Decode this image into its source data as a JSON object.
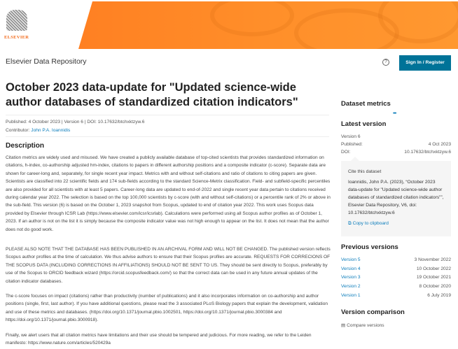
{
  "header": {
    "logo_text": "ELSEVIER",
    "brand_color": "#ff7a1f",
    "site_title": "Elsevier Data Repository",
    "help_icon": "help-circle-icon",
    "signin_label": "Sign In / Register",
    "signin_color": "#007398"
  },
  "dataset": {
    "title": "October 2023 data-update for \"Updated science-wide author databases of standardized citation indicators\"",
    "published_line": "Published: 4 October 2023 | Version 6 | DOI: 10.17632/btchxktzyw.6",
    "contributor_label": "Contributor:",
    "contributor_name": "John P.A. Ioannidis"
  },
  "description": {
    "heading": "Description",
    "paragraphs": [
      "Citation metrics are widely used and misused. We have created a publicly available database of top-cited scientists that provides standardized information on citations, h-index, co-authorship adjusted hm-index, citations to papers in different authorship positions and a composite indicator (c-score). Separate data are shown for career-long and, separately, for single recent year impact. Metrics with and without self-citations and ratio of citations to citing papers are given. Scientists are classified into 22 scientific fields and 174 sub-fields according to the standard Science-Metrix classification. Field- and subfield-specific percentiles are also provided for all scientists with at least 5 papers. Career-long data are updated to end-of-2022 and single recent year data pertain to citations received during calendar year 2022. The selection is based on the top 100,000 scientists by c-score (with and without self-citations) or a percentile rank of 2% or above in the sub-field. This version (6) is based on the October 1, 2023 snapshot from Scopus, updated to end of citation year 2022. This work uses Scopus data provided by Elsevier through ICSR Lab (https://www.elsevier.com/icsr/icsrlab). Calculations were performed using all Scopus author profiles as of October 1, 2023. If an author is not on the list it is simply because the composite indicator value was not high enough to appear on the list. It does not mean that the author does not do good work.",
      "PLEASE ALSO NOTE THAT THE DATABASE HAS BEEN PUBLISHED IN AN ARCHIVAL FORM AND WILL NOT BE CHANGED. The published version reflects Scopus author profiles at the time of calculation. We thus advise authors to ensure that their Scopus profiles are accurate. REQUESTS FOR CORRECIONS OF THE SCOPUS DATA (INCLUDING CORRECTIONS IN AFFILIATIONS) SHOULD NOT BE SENT TO US. They should be sent directly to Scopus, preferably by use of the Scopus to ORCID feedback wizard (https://orcid.scopusfeedback.com/) so that the correct data can be used in any future annual updates of the citation indicator databases.",
      "The c-score focuses on impact (citations) rather than productivity (number of publications) and it also incorporates information on co-authorship and author positions (single, first, last author). If you have additional questions, please read the 3 associated PLoS Biology papers that explain the development, validation and use of these metrics and databases. (https://doi.org/10.1371/journal.pbio.1002501, https://doi.org/10.1371/journal.pbio.3000384 and https://doi.org/10.1371/journal.pbio.3000918).",
      "Finally, we alert users that all citation metrics have limitations and their use should be tempered and judicious. For more reading, we refer to the Leiden manifesto: https://www.nature.com/articles/520429a"
    ]
  },
  "sidebar": {
    "metrics_heading": "Dataset metrics",
    "latest_heading": "Latest version",
    "version": "Version 6",
    "published_label": "Published:",
    "published_value": "4 Oct 2023",
    "doi_label": "DOI:",
    "doi_value": "10.17632/btchxktzyw.6",
    "cite_heading": "Cite this dataset",
    "cite_text": "Ioannidis, John P.A. (2023), “October 2023 data-update for \"Updated science-wide author databases of standardized citation indicators\"”, Elsevier Data Repository, V6, doi: 10.17632/btchxktzyw.6",
    "copy_label": "Copy to clipboard",
    "previous_heading": "Previous versions",
    "previous": [
      {
        "label": "Version 5",
        "date": "3 November 2022"
      },
      {
        "label": "Version 4",
        "date": "10 October 2022"
      },
      {
        "label": "Version 3",
        "date": "19 October 2021"
      },
      {
        "label": "Version 2",
        "date": "8 October 2020"
      },
      {
        "label": "Version 1",
        "date": "6 July 2019"
      }
    ],
    "comparison_heading": "Version comparison",
    "compare_label": "Compare versions"
  }
}
